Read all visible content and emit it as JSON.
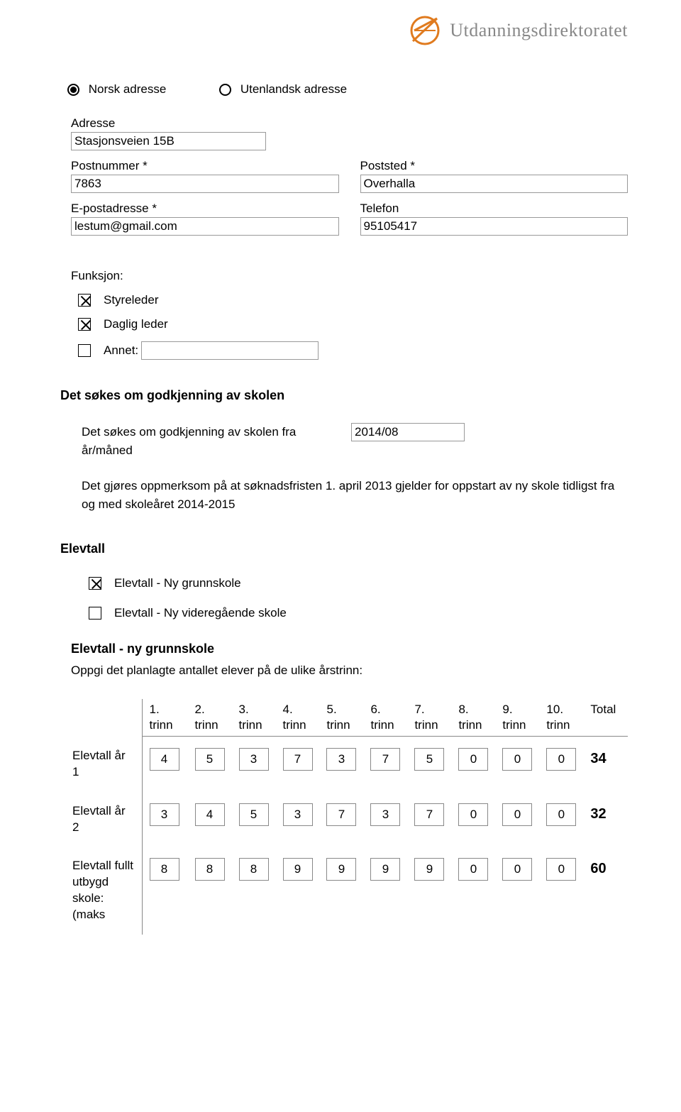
{
  "logo": {
    "text": "Utdanningsdirektoratet",
    "color": "#e07b1f"
  },
  "address": {
    "norsk_label": "Norsk adresse",
    "utenlandsk_label": "Utenlandsk adresse",
    "adresse_label": "Adresse",
    "adresse_value": "Stasjonsveien 15B",
    "postnummer_label": "Postnummer *",
    "postnummer_value": "7863",
    "poststed_label": "Poststed *",
    "poststed_value": "Overhalla",
    "epost_label": "E-postadresse *",
    "epost_value": "lestum@gmail.com",
    "telefon_label": "Telefon",
    "telefon_value": "95105417"
  },
  "funksjon": {
    "heading": "Funksjon:",
    "styreleder": "Styreleder",
    "daglig_leder": "Daglig leder",
    "annet": "Annet:",
    "annet_value": ""
  },
  "godkjenning": {
    "heading": "Det søkes om godkjenning av skolen",
    "sub_label": "Det søkes om godkjenning av skolen fra år/måned",
    "year_value": "2014/08",
    "note": "Det gjøres oppmerksom på at søknadsfristen 1. april 2013 gjelder for oppstart av ny skole tidligst fra og med skoleåret 2014-2015"
  },
  "elevtall": {
    "heading": "Elevtall",
    "check_grunnskole": "Elevtall - Ny grunnskole",
    "check_vgs": "Elevtall - Ny videregående skole",
    "sub_heading": "Elevtall - ny grunnskole",
    "desc": "Oppgi det planlagte antallet elever på de ulike årstrinn:",
    "columns": [
      "1. trinn",
      "2. trinn",
      "3. trinn",
      "4. trinn",
      "5. trinn",
      "6. trinn",
      "7. trinn",
      "8. trinn",
      "9. trinn",
      "10. trinn",
      "Total"
    ],
    "rows": [
      {
        "label": "Elevtall år 1",
        "values": [
          4,
          5,
          3,
          7,
          3,
          7,
          5,
          0,
          0,
          0
        ],
        "total": 34
      },
      {
        "label": "Elevtall år 2",
        "values": [
          3,
          4,
          5,
          3,
          7,
          3,
          7,
          0,
          0,
          0
        ],
        "total": 32
      },
      {
        "label": "Elevtall fullt utbygd skole: (maks",
        "values": [
          8,
          8,
          8,
          9,
          9,
          9,
          9,
          0,
          0,
          0
        ],
        "total": 60
      }
    ]
  }
}
